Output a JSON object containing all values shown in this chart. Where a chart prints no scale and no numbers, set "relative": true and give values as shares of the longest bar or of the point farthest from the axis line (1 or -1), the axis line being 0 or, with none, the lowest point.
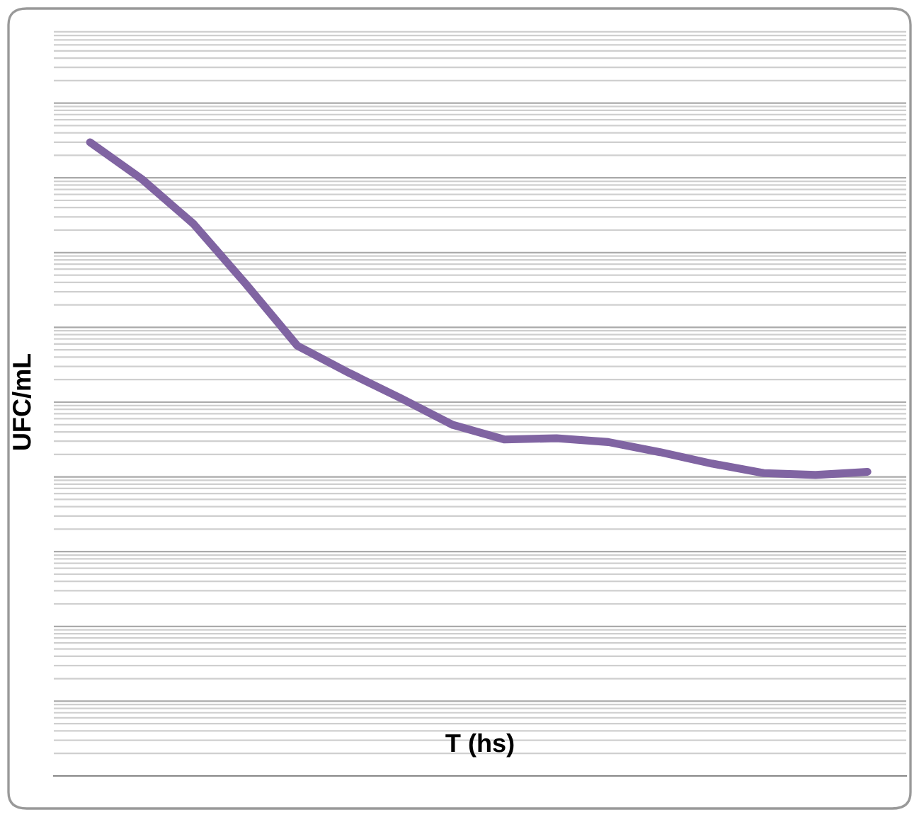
{
  "chart_data": {
    "type": "line",
    "relative": true,
    "xlabel": "T (hs)",
    "ylabel": "UFC/mL",
    "grid": "y",
    "marker": "none",
    "line_style": "solid",
    "categories": [
      null,
      null,
      null,
      null,
      null,
      null,
      null,
      null,
      null,
      null,
      null,
      null,
      null,
      null,
      null,
      null
    ],
    "series": [
      {
        "color": "#8064a2",
        "values": [
          1,
          0.942,
          0.871,
          0.777,
          0.679,
          0.636,
          0.596,
          0.554,
          0.531,
          0.533,
          0.527,
          0.511,
          0.493,
          0.478,
          0.475,
          0.48
        ]
      }
    ]
  }
}
